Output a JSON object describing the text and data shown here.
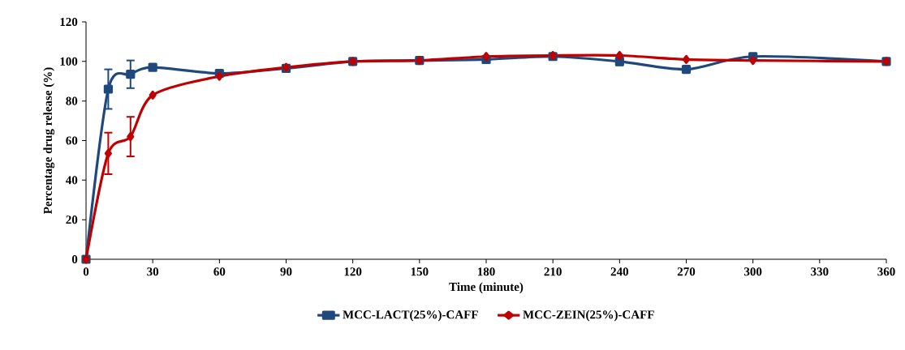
{
  "chart_data": {
    "type": "line",
    "xlabel": "Time (minute)",
    "ylabel": "Percentage drug release (%)",
    "x": [
      0,
      10,
      20,
      30,
      60,
      90,
      120,
      150,
      180,
      210,
      240,
      270,
      300,
      360
    ],
    "series": [
      {
        "name": "MCC-LACT(25%)-CAFF",
        "color": "#1f497d",
        "marker": "square",
        "values": [
          0,
          86,
          93.5,
          97,
          94,
          96.5,
          100,
          100.5,
          101,
          102.5,
          100,
          96,
          102.5,
          100
        ],
        "errors": [
          null,
          10,
          7,
          null,
          null,
          null,
          null,
          null,
          null,
          null,
          2,
          null,
          null,
          null
        ]
      },
      {
        "name": "MCC-ZEIN(25%)-CAFF",
        "color": "#c00000",
        "marker": "diamond",
        "values": [
          0,
          53.5,
          62,
          83,
          92.5,
          97,
          100,
          100.5,
          102.5,
          103,
          103,
          101,
          100.5,
          100
        ],
        "errors": [
          null,
          10.5,
          10,
          null,
          null,
          null,
          null,
          null,
          null,
          null,
          null,
          null,
          null,
          null
        ]
      }
    ],
    "xlim": [
      0,
      360
    ],
    "xticks": [
      0,
      30,
      60,
      90,
      120,
      150,
      180,
      210,
      240,
      270,
      300,
      330,
      360
    ],
    "ylim": [
      0,
      120
    ],
    "yticks": [
      0,
      20,
      40,
      60,
      80,
      100,
      120
    ],
    "grid": false,
    "legend": "bottom",
    "line_style": "solid"
  }
}
